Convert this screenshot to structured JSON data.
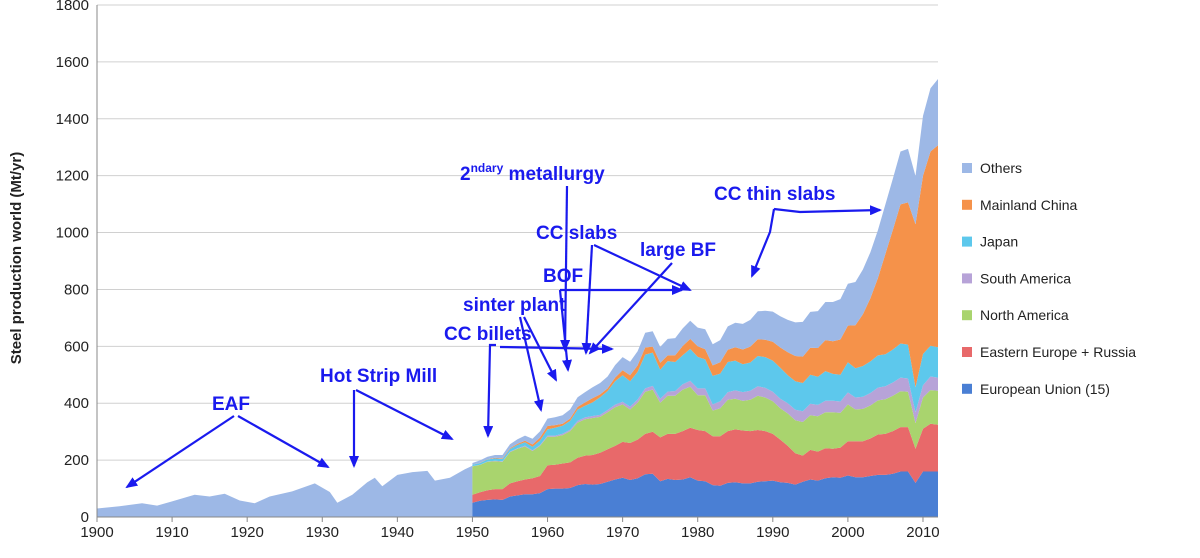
{
  "chart_data": {
    "type": "area",
    "stacked": true,
    "ylabel": "Steel production world (Mt/yr)",
    "xlim": [
      1900,
      2012
    ],
    "ylim": [
      0,
      1800
    ],
    "x_ticks": [
      1900,
      1910,
      1920,
      1930,
      1940,
      1950,
      1960,
      1970,
      1980,
      1990,
      2000,
      2010
    ],
    "y_ticks": [
      0,
      200,
      400,
      600,
      800,
      1000,
      1200,
      1400,
      1600,
      1800
    ],
    "grid": "horizontal",
    "legend_position": "right",
    "colors": {
      "European Union (15)": "#4a7fd4",
      "Eastern Europe + Russia": "#e8696a",
      "North America": "#a9d46e",
      "South America": "#b7a3d8",
      "Japan": "#5dc8ec",
      "Mainland China": "#f5924a",
      "Others": "#9db8e6"
    },
    "legend_order": [
      "Others",
      "Mainland China",
      "Japan",
      "South America",
      "North America",
      "Eastern Europe + Russia",
      "European Union (15)"
    ],
    "x_world": [
      1900,
      1903,
      1906,
      1908,
      1910,
      1913,
      1915,
      1917,
      1919,
      1921,
      1923,
      1926,
      1929,
      1931,
      1932,
      1934,
      1936,
      1937,
      1938,
      1940,
      1942,
      1944,
      1945,
      1947,
      1949,
      1950
    ],
    "world_total": [
      30,
      38,
      48,
      40,
      55,
      78,
      72,
      82,
      58,
      48,
      72,
      90,
      118,
      88,
      50,
      78,
      122,
      138,
      108,
      148,
      158,
      162,
      128,
      138,
      168,
      180
    ],
    "x": [
      1950,
      1951,
      1952,
      1953,
      1954,
      1955,
      1956,
      1957,
      1958,
      1959,
      1960,
      1961,
      1962,
      1963,
      1964,
      1965,
      1966,
      1967,
      1968,
      1969,
      1970,
      1971,
      1972,
      1973,
      1974,
      1975,
      1976,
      1977,
      1978,
      1979,
      1980,
      1981,
      1982,
      1983,
      1984,
      1985,
      1986,
      1987,
      1988,
      1989,
      1990,
      1991,
      1992,
      1993,
      1994,
      1995,
      1996,
      1997,
      1998,
      1999,
      2000,
      2001,
      2002,
      2003,
      2004,
      2005,
      2006,
      2007,
      2008,
      2009,
      2010,
      2011,
      2012
    ],
    "series": [
      {
        "name": "European Union (15)",
        "values": [
          50,
          57,
          60,
          62,
          60,
          72,
          76,
          80,
          80,
          84,
          98,
          100,
          100,
          102,
          112,
          116,
          114,
          116,
          124,
          132,
          138,
          130,
          136,
          150,
          152,
          126,
          134,
          130,
          132,
          140,
          128,
          126,
          112,
          110,
          120,
          122,
          118,
          118,
          124,
          126,
          128,
          122,
          120,
          114,
          124,
          132,
          128,
          136,
          140,
          138,
          146,
          140,
          140,
          144,
          148,
          148,
          152,
          160,
          160,
          120,
          160,
          160,
          160
        ]
      },
      {
        "name": "Eastern Europe + Russia",
        "values": [
          28,
          30,
          34,
          36,
          38,
          46,
          50,
          52,
          56,
          60,
          84,
          84,
          88,
          90,
          96,
          100,
          104,
          110,
          114,
          118,
          126,
          130,
          136,
          142,
          148,
          154,
          158,
          162,
          170,
          174,
          178,
          176,
          172,
          174,
          182,
          186,
          186,
          184,
          182,
          176,
          164,
          150,
          130,
          110,
          92,
          104,
          102,
          106,
          100,
          106,
          120,
          126,
          126,
          132,
          142,
          144,
          150,
          156,
          156,
          120,
          150,
          168,
          164
        ]
      },
      {
        "name": "North America",
        "values": [
          100,
          96,
          100,
          98,
          96,
          110,
          114,
          116,
          96,
          106,
          100,
          98,
          100,
          110,
          124,
          128,
          130,
          126,
          130,
          136,
          132,
          118,
          130,
          148,
          148,
          122,
          134,
          134,
          146,
          144,
          122,
          126,
          90,
          98,
          110,
          108,
          104,
          110,
          120,
          118,
          115,
          110,
          114,
          116,
          118,
          122,
          124,
          126,
          128,
          122,
          130,
          112,
          114,
          116,
          120,
          122,
          124,
          126,
          124,
          90,
          110,
          118,
          120
        ]
      },
      {
        "name": "South America",
        "values": [
          1,
          1,
          1,
          2,
          2,
          2,
          2,
          3,
          3,
          3,
          4,
          4,
          5,
          5,
          6,
          6,
          7,
          7,
          8,
          9,
          9,
          10,
          11,
          12,
          13,
          14,
          15,
          17,
          19,
          21,
          24,
          24,
          22,
          25,
          27,
          29,
          31,
          32,
          34,
          34,
          33,
          34,
          36,
          37,
          38,
          40,
          40,
          41,
          41,
          40,
          42,
          42,
          43,
          44,
          45,
          46,
          47,
          48,
          47,
          38,
          43,
          48,
          46
        ]
      },
      {
        "name": "Japan",
        "values": [
          5,
          6,
          7,
          8,
          8,
          9,
          11,
          12,
          12,
          16,
          22,
          28,
          28,
          31,
          40,
          41,
          48,
          62,
          67,
          82,
          93,
          89,
          97,
          119,
          117,
          102,
          107,
          102,
          102,
          112,
          111,
          102,
          100,
          97,
          106,
          105,
          98,
          99,
          106,
          108,
          110,
          109,
          98,
          100,
          99,
          102,
          99,
          104,
          94,
          94,
          106,
          103,
          108,
          111,
          113,
          112,
          116,
          120,
          119,
          88,
          110,
          108,
          107
        ]
      },
      {
        "name": "Mainland China",
        "values": [
          0,
          1,
          1,
          2,
          2,
          3,
          4,
          5,
          8,
          10,
          12,
          9,
          7,
          8,
          9,
          12,
          15,
          10,
          9,
          13,
          18,
          21,
          23,
          25,
          21,
          24,
          20,
          24,
          32,
          35,
          37,
          36,
          37,
          40,
          43,
          47,
          52,
          56,
          59,
          61,
          66,
          71,
          81,
          89,
          93,
          95,
          101,
          109,
          115,
          124,
          129,
          151,
          182,
          222,
          272,
          353,
          421,
          489,
          500,
          573,
          627,
          683,
          710
        ]
      },
      {
        "name": "Others",
        "values": [
          6,
          8,
          9,
          10,
          12,
          14,
          16,
          18,
          20,
          22,
          26,
          28,
          30,
          32,
          34,
          36,
          38,
          40,
          42,
          44,
          46,
          48,
          50,
          52,
          54,
          56,
          58,
          60,
          62,
          64,
          66,
          70,
          74,
          78,
          82,
          86,
          90,
          94,
          98,
          102,
          106,
          110,
          114,
          118,
          122,
          126,
          130,
          134,
          138,
          142,
          147,
          152,
          157,
          162,
          168,
          174,
          180,
          186,
          188,
          170,
          210,
          222,
          233
        ]
      }
    ]
  },
  "annotations": [
    {
      "text": "EAF"
    },
    {
      "text": "Hot Strip Mill"
    },
    {
      "text": "CC billets"
    },
    {
      "text": "sinter plant"
    },
    {
      "text": "BOF"
    },
    {
      "text": "CC slabs"
    },
    {
      "text": "large BF"
    },
    {
      "base": "2",
      "sup": "ndary",
      "rest": " metallurgy"
    },
    {
      "text": "CC thin slabs"
    }
  ]
}
